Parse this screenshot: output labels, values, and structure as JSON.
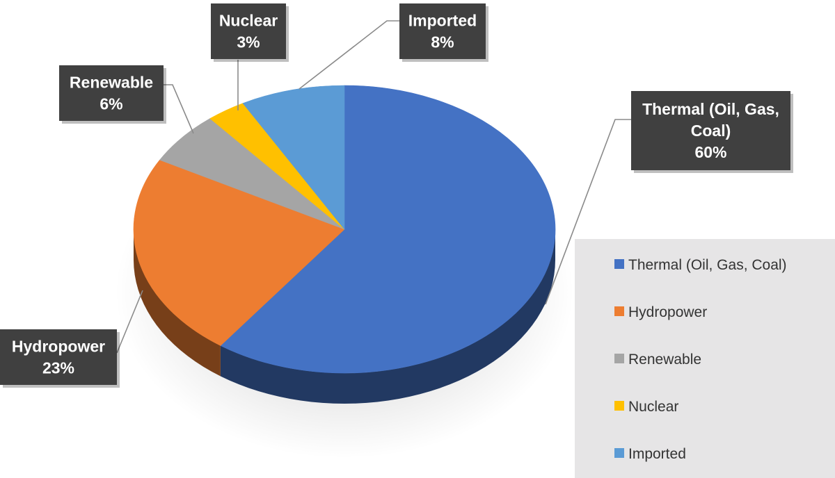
{
  "chart_data": {
    "type": "pie",
    "categories": [
      "Thermal (Oil, Gas, Coal)",
      "Hydropower",
      "Renewable",
      "Nuclear",
      "Imported"
    ],
    "values": [
      60,
      23,
      6,
      3,
      8
    ],
    "unit": "%",
    "colors": [
      "#4472C4",
      "#ED7D31",
      "#A5A5A5",
      "#FFC000",
      "#5B9BD5"
    ],
    "data_labels": [
      {
        "lines": [
          "Thermal (Oil, Gas,",
          "Coal)"
        ],
        "value": "60%"
      },
      {
        "lines": [
          "Hydropower"
        ],
        "value": "23%"
      },
      {
        "lines": [
          "Renewable"
        ],
        "value": "6%"
      },
      {
        "lines": [
          "Nuclear"
        ],
        "value": "3%"
      },
      {
        "lines": [
          "Imported"
        ],
        "value": "8%"
      }
    ],
    "legend": {
      "placement": "right",
      "entries": [
        "Thermal (Oil, Gas, Coal)",
        "Hydropower",
        "Renewable",
        "Nuclear",
        "Imported"
      ]
    },
    "style": "3d-pie",
    "grid": false
  }
}
